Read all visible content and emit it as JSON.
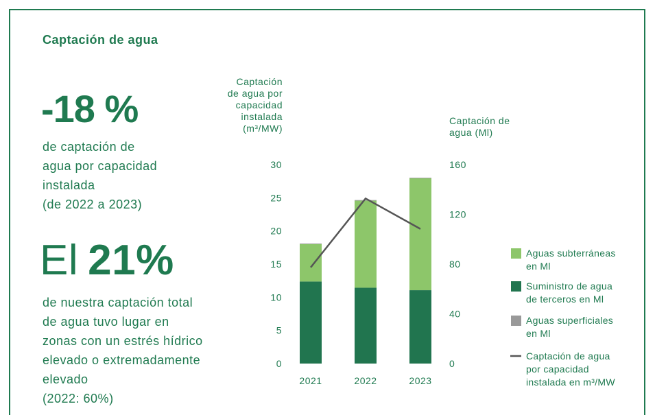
{
  "title": "Captación de agua",
  "kpi1": {
    "value": "-18 %",
    "lines": [
      "de captación de",
      "agua por capacidad",
      "instalada",
      "(de 2022 a 2023)"
    ]
  },
  "kpi2": {
    "prefix": "El",
    "value": "21%",
    "lines": [
      "de nuestra captación total",
      "de agua tuvo lugar en",
      "zonas con un estrés hídrico",
      "elevado o extremadamente",
      "elevado"
    ],
    "note": "(2022: 60%)"
  },
  "chart_data": {
    "type": "bar",
    "stacked": true,
    "ylabel": [
      "Captación",
      "de agua por",
      "capacidad",
      "instalada",
      "(m³/MW)"
    ],
    "y2label": [
      "Captación de",
      "agua (Ml)"
    ],
    "categories": [
      "2021",
      "2022",
      "2023"
    ],
    "ylim": [
      0,
      30
    ],
    "yticks": [
      0,
      5,
      10,
      15,
      20,
      25,
      30
    ],
    "y2lim": [
      0,
      160
    ],
    "y2ticks": [
      0,
      40,
      80,
      120,
      160
    ],
    "series": [
      {
        "name": "Suministro de agua de terceros en Ml",
        "color": "#21754f",
        "axis": "y2",
        "values": [
          66,
          61,
          59
        ]
      },
      {
        "name": "Aguas subterráneas en Ml",
        "color": "#8dc66a",
        "axis": "y2",
        "values": [
          30,
          70,
          90
        ]
      },
      {
        "name": "Aguas superficiales en Ml",
        "color": "#999999",
        "axis": "y2",
        "values": [
          0.5,
          0.5,
          0.5
        ]
      },
      {
        "name": "Captación de agua por capacidad instalada en m³/MW",
        "color": "#555555",
        "type": "line",
        "values": [
          14.5,
          24.9,
          20.3
        ]
      }
    ],
    "legend_order": [
      1,
      0,
      2,
      3
    ]
  }
}
